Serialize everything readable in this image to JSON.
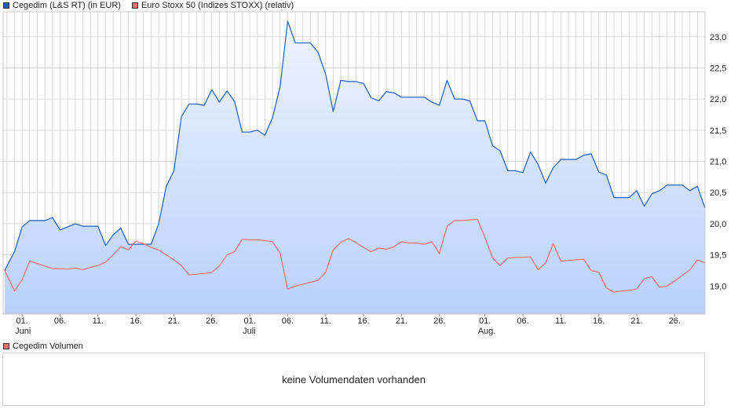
{
  "legend": {
    "cegedim_label": "Cegedim (L&S RT) (in EUR)",
    "stoxx_label": "Euro Stoxx 50 (Indizes STOXX) (relativ)",
    "volume_label": "Cegedim Volumen"
  },
  "colors": {
    "cegedim": "#1f5fbf",
    "stoxx": "#ff6f6f",
    "volume_swatch": "#ff6f6f",
    "area_top": "#eef4fe",
    "area_bottom": "#b9d1fa",
    "grid": "#d8d8d8"
  },
  "volume_panel": {
    "message": "keine Volumendaten vorhanden"
  },
  "chart_data": {
    "type": "line",
    "x_tick_labels": [
      "01.",
      "06.",
      "11.",
      "16.",
      "21.",
      "26.",
      "01.",
      "06.",
      "11.",
      "16.",
      "21.",
      "26.",
      "01.",
      "06.",
      "11.",
      "16.",
      "21.",
      "26."
    ],
    "x_tick_days": [
      1,
      6,
      11,
      16,
      21,
      26,
      31,
      36,
      41,
      46,
      51,
      56,
      62,
      67,
      72,
      77,
      82,
      87
    ],
    "month_labels": [
      {
        "label": "Juni",
        "day": 1
      },
      {
        "label": "Juli",
        "day": 31
      },
      {
        "label": "Aug.",
        "day": 62
      }
    ],
    "y_ticks": [
      "19,0",
      "19,5",
      "20,0",
      "20,5",
      "21,0",
      "21,5",
      "22,0",
      "22,5",
      "23,0"
    ],
    "y_tick_values": [
      19.0,
      19.5,
      20.0,
      20.5,
      21.0,
      21.5,
      22.0,
      22.5,
      23.0
    ],
    "ylim": [
      18.55,
      23.4
    ],
    "xlim": [
      -1.5,
      91
    ],
    "grid": true,
    "series": [
      {
        "name": "Cegedim (L&S RT) (in EUR)",
        "fill": true,
        "points": [
          [
            -1.3,
            19.25
          ],
          [
            0,
            19.55
          ],
          [
            1,
            19.95
          ],
          [
            2,
            20.05
          ],
          [
            3,
            20.05
          ],
          [
            4,
            20.05
          ],
          [
            5,
            20.1
          ],
          [
            6,
            19.9
          ],
          [
            7,
            19.95
          ],
          [
            8,
            20.0
          ],
          [
            9,
            19.96
          ],
          [
            10,
            19.96
          ],
          [
            11,
            19.96
          ],
          [
            12,
            19.65
          ],
          [
            13,
            19.82
          ],
          [
            14,
            19.93
          ],
          [
            15,
            19.67
          ],
          [
            16,
            19.67
          ],
          [
            17,
            19.67
          ],
          [
            18,
            19.67
          ],
          [
            19,
            20.0
          ],
          [
            20,
            20.6
          ],
          [
            21,
            20.85
          ],
          [
            22,
            21.72
          ],
          [
            23,
            21.92
          ],
          [
            24,
            21.92
          ],
          [
            25,
            21.9
          ],
          [
            26,
            22.15
          ],
          [
            27,
            21.95
          ],
          [
            28,
            22.13
          ],
          [
            29,
            21.96
          ],
          [
            30,
            21.47
          ],
          [
            31,
            21.47
          ],
          [
            32,
            21.5
          ],
          [
            33,
            21.42
          ],
          [
            34,
            21.7
          ],
          [
            35,
            22.2
          ],
          [
            36,
            23.25
          ],
          [
            37,
            22.9
          ],
          [
            38,
            22.9
          ],
          [
            39,
            22.9
          ],
          [
            40,
            22.75
          ],
          [
            41,
            22.4
          ],
          [
            42,
            21.8
          ],
          [
            43,
            22.3
          ],
          [
            44,
            22.28
          ],
          [
            45,
            22.28
          ],
          [
            46,
            22.25
          ],
          [
            47,
            22.02
          ],
          [
            48,
            21.97
          ],
          [
            49,
            22.12
          ],
          [
            50,
            22.1
          ],
          [
            51,
            22.03
          ],
          [
            52,
            22.03
          ],
          [
            53,
            22.03
          ],
          [
            54,
            22.03
          ],
          [
            55,
            21.95
          ],
          [
            56,
            21.9
          ],
          [
            57,
            22.3
          ],
          [
            58,
            22.0
          ],
          [
            59,
            22.0
          ],
          [
            60,
            21.97
          ],
          [
            61,
            21.65
          ],
          [
            62,
            21.65
          ],
          [
            63,
            21.25
          ],
          [
            64,
            21.17
          ],
          [
            65,
            20.85
          ],
          [
            66,
            20.85
          ],
          [
            67,
            20.82
          ],
          [
            68,
            21.15
          ],
          [
            69,
            20.95
          ],
          [
            70,
            20.65
          ],
          [
            71,
            20.9
          ],
          [
            72,
            21.03
          ],
          [
            73,
            21.03
          ],
          [
            74,
            21.03
          ],
          [
            75,
            21.1
          ],
          [
            76,
            21.12
          ],
          [
            77,
            20.83
          ],
          [
            78,
            20.78
          ],
          [
            79,
            20.42
          ],
          [
            80,
            20.42
          ],
          [
            81,
            20.42
          ],
          [
            82,
            20.53
          ],
          [
            83,
            20.28
          ],
          [
            84,
            20.48
          ],
          [
            85,
            20.53
          ],
          [
            86,
            20.62
          ],
          [
            87,
            20.62
          ],
          [
            88,
            20.62
          ],
          [
            89,
            20.53
          ],
          [
            90,
            20.6
          ],
          [
            91,
            20.25
          ]
        ]
      },
      {
        "name": "Euro Stoxx 50 (Indizes STOXX) (relativ)",
        "fill": false,
        "points": [
          [
            -1.3,
            19.25
          ],
          [
            0,
            18.92
          ],
          [
            1,
            19.1
          ],
          [
            2,
            19.4
          ],
          [
            3,
            19.36
          ],
          [
            4,
            19.32
          ],
          [
            5,
            19.28
          ],
          [
            6,
            19.28
          ],
          [
            7,
            19.27
          ],
          [
            8,
            19.29
          ],
          [
            9,
            19.26
          ],
          [
            10,
            19.3
          ],
          [
            11,
            19.33
          ],
          [
            12,
            19.38
          ],
          [
            13,
            19.5
          ],
          [
            14,
            19.63
          ],
          [
            15,
            19.58
          ],
          [
            16,
            19.72
          ],
          [
            17,
            19.68
          ],
          [
            18,
            19.62
          ],
          [
            19,
            19.58
          ],
          [
            20,
            19.5
          ],
          [
            21,
            19.42
          ],
          [
            22,
            19.33
          ],
          [
            23,
            19.18
          ],
          [
            24,
            19.19
          ],
          [
            25,
            19.2
          ],
          [
            26,
            19.22
          ],
          [
            27,
            19.32
          ],
          [
            28,
            19.5
          ],
          [
            29,
            19.55
          ],
          [
            30,
            19.75
          ],
          [
            31,
            19.74
          ],
          [
            32,
            19.74
          ],
          [
            33,
            19.73
          ],
          [
            34,
            19.71
          ],
          [
            35,
            19.53
          ],
          [
            36,
            18.95
          ],
          [
            37,
            19.0
          ],
          [
            38,
            19.03
          ],
          [
            39,
            19.06
          ],
          [
            40,
            19.09
          ],
          [
            41,
            19.22
          ],
          [
            42,
            19.58
          ],
          [
            43,
            19.7
          ],
          [
            44,
            19.76
          ],
          [
            45,
            19.7
          ],
          [
            46,
            19.62
          ],
          [
            47,
            19.55
          ],
          [
            48,
            19.61
          ],
          [
            49,
            19.59
          ],
          [
            50,
            19.63
          ],
          [
            51,
            19.71
          ],
          [
            52,
            19.69
          ],
          [
            53,
            19.69
          ],
          [
            54,
            19.67
          ],
          [
            55,
            19.71
          ],
          [
            56,
            19.52
          ],
          [
            57,
            19.96
          ],
          [
            58,
            20.05
          ],
          [
            59,
            20.05
          ],
          [
            60,
            20.06
          ],
          [
            61,
            20.07
          ],
          [
            62,
            19.78
          ],
          [
            63,
            19.45
          ],
          [
            64,
            19.33
          ],
          [
            65,
            19.45
          ],
          [
            66,
            19.46
          ],
          [
            67,
            19.46
          ],
          [
            68,
            19.47
          ],
          [
            69,
            19.26
          ],
          [
            70,
            19.37
          ],
          [
            71,
            19.68
          ],
          [
            72,
            19.4
          ],
          [
            73,
            19.41
          ],
          [
            74,
            19.42
          ],
          [
            75,
            19.43
          ],
          [
            76,
            19.25
          ],
          [
            77,
            19.22
          ],
          [
            78,
            18.97
          ],
          [
            79,
            18.9
          ],
          [
            80,
            18.92
          ],
          [
            81,
            18.93
          ],
          [
            82,
            18.95
          ],
          [
            83,
            19.12
          ],
          [
            84,
            19.15
          ],
          [
            85,
            18.98
          ],
          [
            86,
            19.0
          ],
          [
            87,
            19.08
          ],
          [
            88,
            19.17
          ],
          [
            89,
            19.26
          ],
          [
            90,
            19.42
          ],
          [
            91,
            19.37
          ]
        ]
      }
    ]
  }
}
